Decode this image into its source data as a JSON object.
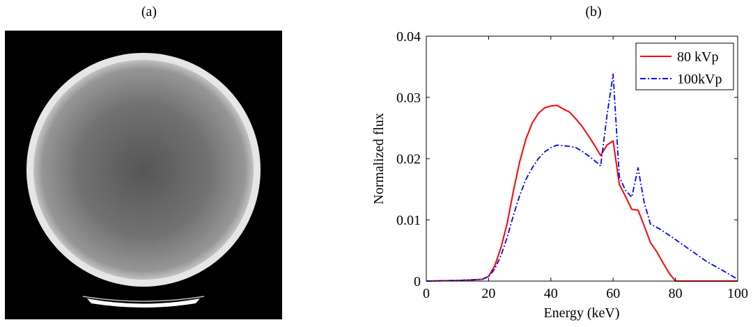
{
  "panels": {
    "a_label": "(a)",
    "b_label": "(b)"
  },
  "ct_image": {
    "background_color": "#000000",
    "phantom_color": "#8a8a8a",
    "rim_color": "#e6e6e6",
    "table_color": "#ffffff"
  },
  "chart_data": {
    "type": "line",
    "xlabel": "Energy (keV)",
    "ylabel": "Normalized flux",
    "xlim": [
      0,
      100
    ],
    "ylim": [
      0,
      0.04
    ],
    "xticks": [
      0,
      20,
      40,
      60,
      80,
      100
    ],
    "yticks": [
      0,
      0.01,
      0.02,
      0.03,
      0.04
    ],
    "xtick_labels": [
      "0",
      "20",
      "40",
      "60",
      "80",
      "100"
    ],
    "ytick_labels": [
      "0",
      "0.01",
      "0.02",
      "0.03",
      "0.04"
    ],
    "grid": false,
    "legend_position": "top-right",
    "series": [
      {
        "name": "80 kVp",
        "color": "#ff0000",
        "style": "solid",
        "x": [
          0,
          10,
          15,
          18,
          20,
          22,
          24,
          26,
          28,
          30,
          32,
          34,
          36,
          38,
          40,
          42,
          44,
          46,
          48,
          50,
          52,
          54,
          56,
          58,
          60,
          62,
          64,
          66,
          68,
          70,
          72,
          74,
          76,
          78,
          80,
          90,
          100
        ],
        "y": [
          0,
          0.0001,
          0.0002,
          0.0003,
          0.0008,
          0.0025,
          0.0055,
          0.0095,
          0.0148,
          0.0195,
          0.0232,
          0.0258,
          0.0274,
          0.0283,
          0.0286,
          0.0287,
          0.0281,
          0.0276,
          0.0265,
          0.0253,
          0.0238,
          0.0222,
          0.0205,
          0.0222,
          0.0229,
          0.0158,
          0.0138,
          0.0117,
          0.0116,
          0.009,
          0.0063,
          0.0048,
          0.003,
          0.0013,
          0.0,
          0.0,
          0.0
        ]
      },
      {
        "name": "100kVp",
        "color": "#0000ff",
        "style": "dashdot",
        "x": [
          0,
          10,
          15,
          18,
          20,
          22,
          24,
          26,
          28,
          30,
          32,
          34,
          36,
          38,
          40,
          42,
          44,
          46,
          48,
          50,
          52,
          54,
          56,
          58,
          60,
          62,
          64,
          66,
          68,
          70,
          72,
          75,
          80,
          85,
          90,
          95,
          100
        ],
        "y": [
          0,
          0.0001,
          0.0002,
          0.0003,
          0.0007,
          0.002,
          0.0042,
          0.0072,
          0.0108,
          0.014,
          0.0166,
          0.0185,
          0.02,
          0.0211,
          0.0218,
          0.0222,
          0.0221,
          0.022,
          0.0218,
          0.0212,
          0.0205,
          0.0197,
          0.0188,
          0.027,
          0.0338,
          0.017,
          0.0148,
          0.0137,
          0.0185,
          0.0128,
          0.0093,
          0.0085,
          0.0068,
          0.005,
          0.0032,
          0.0018,
          0.0003
        ]
      }
    ]
  }
}
